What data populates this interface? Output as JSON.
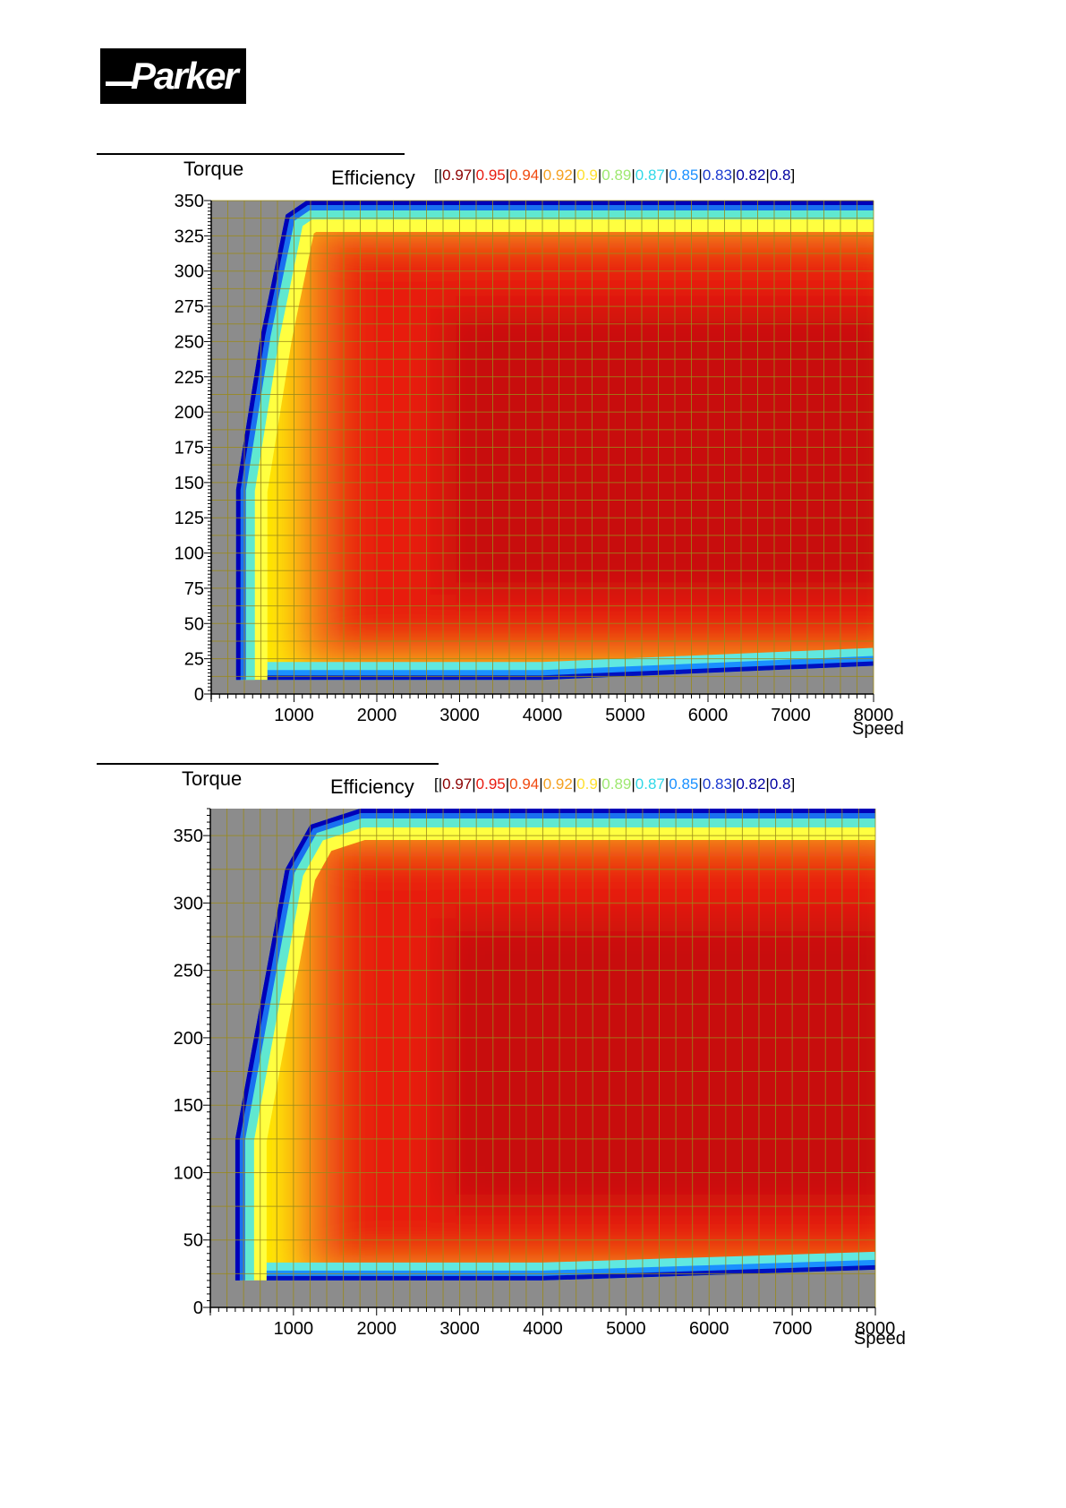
{
  "logo": {
    "text": "Parker"
  },
  "legend_colors": [
    "#8b0000",
    "#e81a10",
    "#f04a10",
    "#f5a020",
    "#ffe030",
    "#9ee870",
    "#30d8e8",
    "#1a90ff",
    "#1a3ad0",
    "#0000a0"
  ],
  "chart_data": [
    {
      "type": "heatmap",
      "title": "Efficiency",
      "ylabel": "Torque",
      "xlabel": "Speed",
      "xlim": [
        0,
        8000
      ],
      "ylim": [
        0,
        350
      ],
      "x_ticks": [
        1000,
        2000,
        3000,
        4000,
        5000,
        6000,
        7000,
        8000
      ],
      "y_ticks": [
        0,
        25,
        50,
        75,
        100,
        125,
        150,
        175,
        200,
        225,
        250,
        275,
        300,
        325,
        350
      ],
      "legend_prefix": "[|",
      "legend_levels": [
        "0.97",
        "0.95",
        "0.94",
        "0.92",
        "0.9",
        "0.89",
        "0.87",
        "0.85",
        "0.83",
        "0.82",
        "0.8"
      ],
      "legend_suffix": "]",
      "max_torque_curve": [
        [
          300,
          0
        ],
        [
          300,
          145
        ],
        [
          600,
          255
        ],
        [
          900,
          340
        ],
        [
          1150,
          350
        ],
        [
          8000,
          350
        ]
      ],
      "min_torque_curve": [
        [
          300,
          10
        ],
        [
          4000,
          10
        ],
        [
          8000,
          20
        ]
      ]
    },
    {
      "type": "heatmap",
      "title": "Efficiency",
      "ylabel": "Torque",
      "xlabel": "Speed",
      "xlim": [
        0,
        8000
      ],
      "ylim": [
        0,
        370
      ],
      "x_ticks": [
        1000,
        2000,
        3000,
        4000,
        5000,
        6000,
        7000,
        8000
      ],
      "y_ticks": [
        0,
        50,
        100,
        150,
        200,
        250,
        300,
        350
      ],
      "legend_prefix": "[|",
      "legend_levels": [
        "0.97",
        "0.95",
        "0.94",
        "0.92",
        "0.9",
        "0.89",
        "0.87",
        "0.85",
        "0.83",
        "0.82",
        "0.8"
      ],
      "legend_suffix": "]",
      "max_torque_curve": [
        [
          300,
          0
        ],
        [
          300,
          125
        ],
        [
          600,
          225
        ],
        [
          900,
          325
        ],
        [
          1200,
          358
        ],
        [
          1800,
          370
        ],
        [
          8000,
          370
        ]
      ],
      "min_torque_curve": [
        [
          300,
          20
        ],
        [
          4000,
          20
        ],
        [
          8000,
          28
        ]
      ]
    }
  ]
}
